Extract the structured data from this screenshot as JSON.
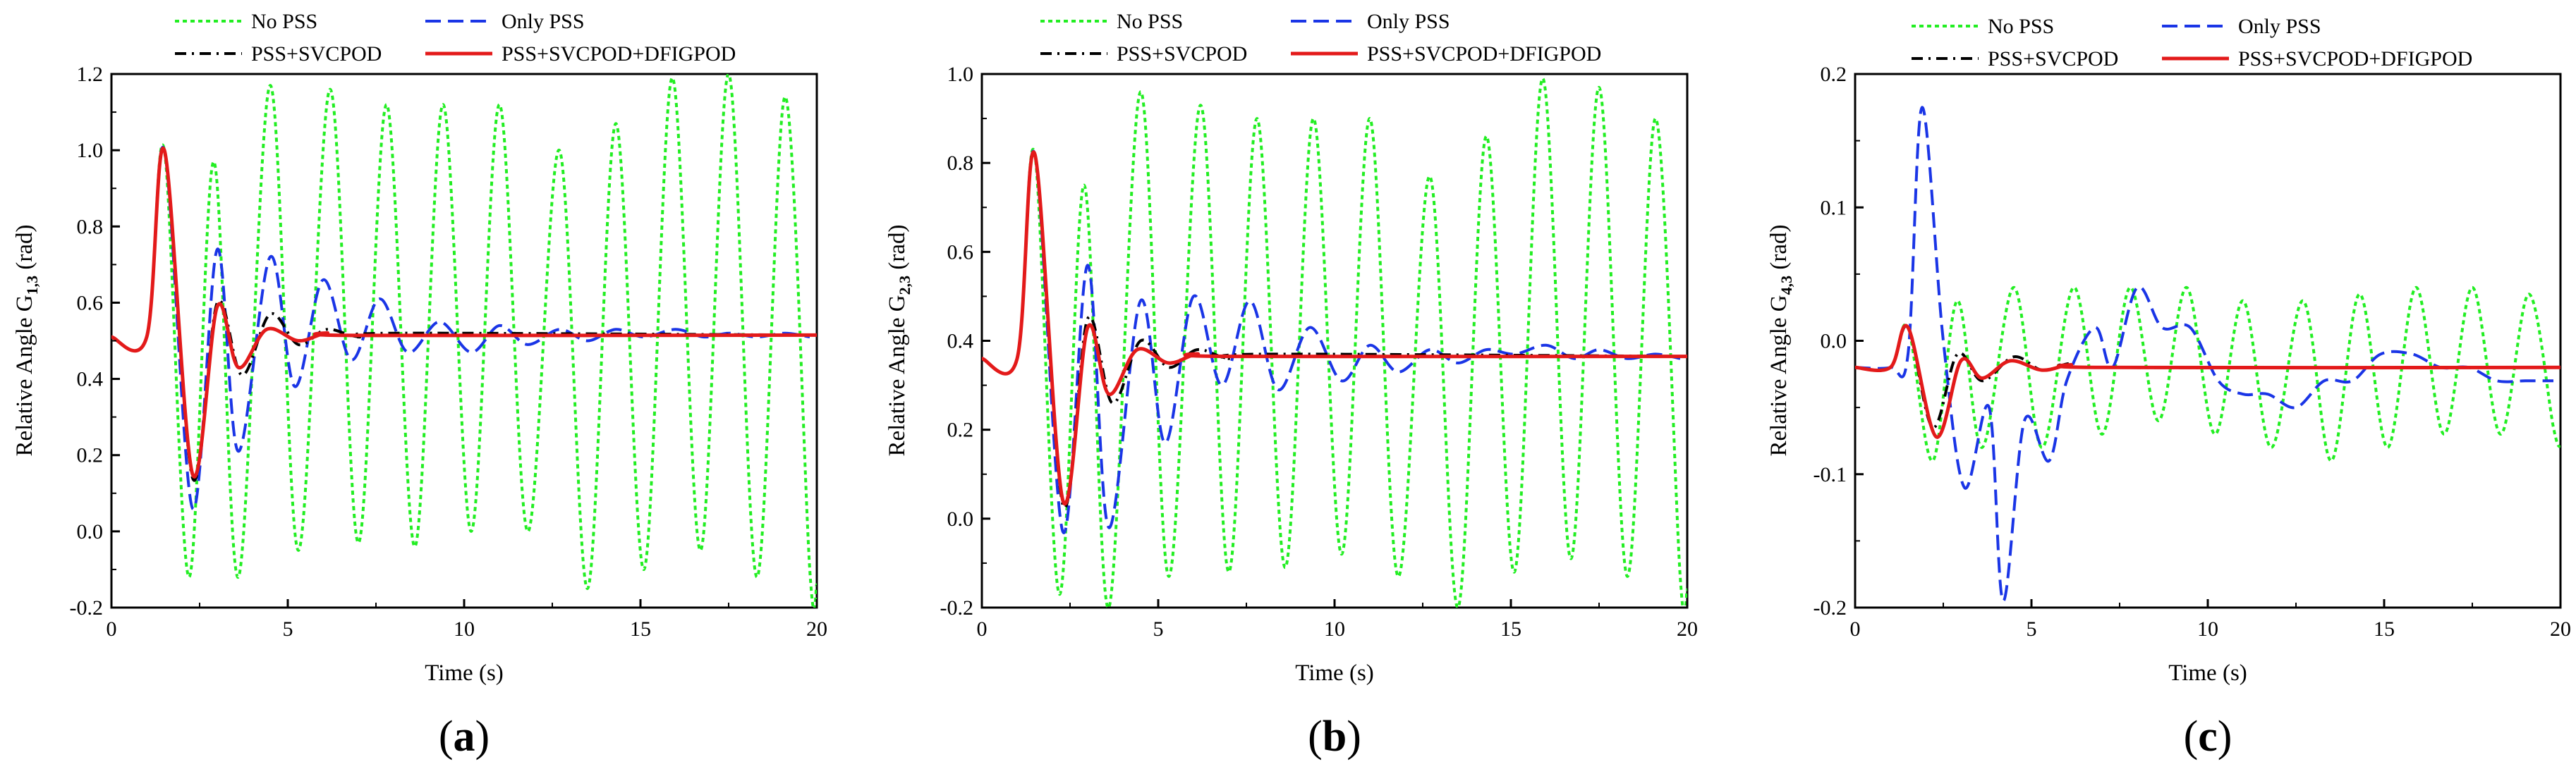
{
  "figure": {
    "panel_labels": [
      {
        "open": "(",
        "letter": "a",
        "close": ")"
      },
      {
        "open": "(",
        "letter": "b",
        "close": ")"
      },
      {
        "open": "(",
        "letter": "c",
        "close": ")"
      }
    ]
  },
  "chart_data": [
    {
      "type": "line",
      "title": "",
      "xlabel": "Time (s)",
      "ylabel_prefix": "Relative Angle G",
      "ylabel_sub": "1,3",
      "ylabel_unit": "(rad)",
      "xlim": [
        0,
        20
      ],
      "ylim": [
        -0.2,
        1.2
      ],
      "xticks": [
        0,
        5,
        10,
        15,
        20
      ],
      "yticks": [
        -0.2,
        0.0,
        0.2,
        0.4,
        0.6,
        0.8,
        1.0,
        1.2
      ],
      "ytick_labels": [
        "-0.2",
        "0.0",
        "0.2",
        "0.4",
        "0.6",
        "0.8",
        "1.0",
        "1.2"
      ],
      "legend": [
        "No PSS",
        "Only PSS",
        "PSS+SVCPOD",
        "PSS+SVCPOD+DFIGPOD"
      ],
      "series": [
        {
          "name": "No PSS",
          "color": "#22ee22",
          "style": "dot",
          "x": [
            0,
            1.0,
            1.5,
            2.2,
            2.9,
            3.6,
            4.5,
            5.3,
            6.2,
            7.0,
            7.8,
            8.6,
            9.4,
            10.2,
            11.0,
            11.8,
            12.7,
            13.5,
            14.3,
            15.1,
            15.9,
            16.7,
            17.5,
            18.3,
            19.1,
            19.8,
            20
          ],
          "y": [
            0.51,
            0.51,
            1.0,
            -0.12,
            0.97,
            -0.12,
            1.17,
            -0.05,
            1.16,
            -0.03,
            1.12,
            -0.04,
            1.12,
            0.0,
            1.12,
            0.0,
            1.0,
            -0.15,
            1.07,
            -0.1,
            1.19,
            -0.05,
            1.2,
            -0.12,
            1.14,
            -0.1,
            -0.14
          ]
        },
        {
          "name": "Only PSS",
          "color": "#1a35e6",
          "style": "dash",
          "x": [
            0,
            1.0,
            1.5,
            2.3,
            3.0,
            3.6,
            4.5,
            5.2,
            6.0,
            6.8,
            7.6,
            8.4,
            9.3,
            10.2,
            11.0,
            11.8,
            12.7,
            13.5,
            14.3,
            15.1,
            16.0,
            16.8,
            17.5,
            18.3,
            19.1,
            19.8
          ],
          "y": [
            0.51,
            0.51,
            1.0,
            0.06,
            0.74,
            0.21,
            0.72,
            0.38,
            0.66,
            0.45,
            0.61,
            0.47,
            0.55,
            0.47,
            0.54,
            0.49,
            0.53,
            0.5,
            0.53,
            0.51,
            0.53,
            0.51,
            0.52,
            0.51,
            0.52,
            0.51
          ]
        },
        {
          "name": "PSS+SVCPOD",
          "color": "#000000",
          "style": "dashdot",
          "x": [
            0,
            1.0,
            1.5,
            2.3,
            3.0,
            3.7,
            4.5,
            5.3,
            6.1,
            7.0,
            8.0,
            20
          ],
          "y": [
            0.51,
            0.51,
            1.0,
            0.14,
            0.6,
            0.41,
            0.57,
            0.49,
            0.53,
            0.51,
            0.52,
            0.515
          ]
        },
        {
          "name": "PSS+SVCPOD+DFIGPOD",
          "color": "#e31a1a",
          "style": "solid",
          "x": [
            0,
            1.0,
            1.5,
            2.3,
            3.0,
            3.6,
            4.4,
            5.3,
            6.1,
            7.0,
            20
          ],
          "y": [
            0.51,
            0.51,
            1.0,
            0.15,
            0.59,
            0.43,
            0.53,
            0.5,
            0.52,
            0.514,
            0.515
          ]
        }
      ]
    },
    {
      "type": "line",
      "title": "",
      "xlabel": "Time (s)",
      "ylabel_prefix": "Relative Angle G",
      "ylabel_sub": "2,3",
      "ylabel_unit": "(rad)",
      "xlim": [
        0,
        20
      ],
      "ylim": [
        -0.2,
        1.0
      ],
      "xticks": [
        0,
        5,
        10,
        15,
        20
      ],
      "yticks": [
        -0.2,
        0.0,
        0.2,
        0.4,
        0.6,
        0.8,
        1.0
      ],
      "ytick_labels": [
        "-0.2",
        "0.0",
        "0.2",
        "0.4",
        "0.6",
        "0.8",
        "1.0"
      ],
      "legend": [
        "No PSS",
        "Only PSS",
        "PSS+SVCPOD",
        "PSS+SVCPOD+DFIGPOD"
      ],
      "series": [
        {
          "name": "No PSS",
          "color": "#22ee22",
          "style": "dot",
          "x": [
            0,
            1.0,
            1.5,
            2.2,
            2.9,
            3.6,
            4.5,
            5.3,
            6.2,
            7.0,
            7.8,
            8.6,
            9.4,
            10.2,
            11.0,
            11.8,
            12.7,
            13.5,
            14.3,
            15.1,
            15.9,
            16.7,
            17.5,
            18.3,
            19.1,
            19.8,
            20
          ],
          "y": [
            0.36,
            0.36,
            0.82,
            -0.17,
            0.75,
            -0.2,
            0.96,
            -0.13,
            0.93,
            -0.12,
            0.9,
            -0.11,
            0.9,
            -0.08,
            0.9,
            -0.13,
            0.77,
            -0.2,
            0.86,
            -0.12,
            0.99,
            -0.09,
            0.97,
            -0.13,
            0.9,
            -0.13,
            -0.16
          ]
        },
        {
          "name": "Only PSS",
          "color": "#1a35e6",
          "style": "dash",
          "x": [
            0,
            1.0,
            1.5,
            2.3,
            3.0,
            3.6,
            4.5,
            5.2,
            6.0,
            6.8,
            7.6,
            8.4,
            9.3,
            10.2,
            11.0,
            11.8,
            12.7,
            13.5,
            14.3,
            15.1,
            16.0,
            16.8,
            17.5,
            18.3,
            19.1,
            19.8
          ],
          "y": [
            0.36,
            0.36,
            0.82,
            -0.03,
            0.57,
            -0.02,
            0.49,
            0.17,
            0.5,
            0.3,
            0.49,
            0.29,
            0.43,
            0.31,
            0.39,
            0.33,
            0.38,
            0.35,
            0.38,
            0.37,
            0.39,
            0.36,
            0.38,
            0.36,
            0.37,
            0.36
          ]
        },
        {
          "name": "PSS+SVCPOD",
          "color": "#000000",
          "style": "dashdot",
          "x": [
            0,
            1.0,
            1.5,
            2.3,
            3.0,
            3.7,
            4.5,
            5.3,
            6.1,
            7.0,
            8.0,
            20
          ],
          "y": [
            0.36,
            0.36,
            0.82,
            0.03,
            0.45,
            0.26,
            0.4,
            0.34,
            0.38,
            0.36,
            0.37,
            0.365
          ]
        },
        {
          "name": "PSS+SVCPOD+DFIGPOD",
          "color": "#e31a1a",
          "style": "solid",
          "x": [
            0,
            1.0,
            1.5,
            2.3,
            3.0,
            3.6,
            4.4,
            5.3,
            6.1,
            7.0,
            20
          ],
          "y": [
            0.36,
            0.36,
            0.82,
            0.04,
            0.43,
            0.28,
            0.38,
            0.35,
            0.37,
            0.365,
            0.365
          ]
        }
      ]
    },
    {
      "type": "line",
      "title": "",
      "xlabel": "Time (s)",
      "ylabel_prefix": "Relative Angle G",
      "ylabel_sub": "4,3",
      "ylabel_unit": "(rad)",
      "xlim": [
        0,
        20
      ],
      "ylim": [
        -0.2,
        0.2
      ],
      "xticks": [
        0,
        5,
        10,
        15,
        20
      ],
      "yticks": [
        -0.2,
        -0.1,
        0.0,
        0.1,
        0.2
      ],
      "ytick_labels": [
        "-0.2",
        "-0.1",
        "0.0",
        "0.1",
        "0.2"
      ],
      "legend": [
        "No PSS",
        "Only PSS",
        "PSS+SVCPOD",
        "PSS+SVCPOD+DFIGPOD"
      ],
      "series": [
        {
          "name": "No PSS",
          "color": "#22ee22",
          "style": "dot",
          "x": [
            0,
            1.0,
            1.5,
            2.2,
            2.9,
            3.6,
            4.5,
            5.3,
            6.2,
            7.0,
            7.8,
            8.6,
            9.4,
            10.2,
            11.0,
            11.8,
            12.7,
            13.5,
            14.3,
            15.1,
            15.9,
            16.7,
            17.5,
            18.3,
            19.1,
            19.8,
            20
          ],
          "y": [
            -0.02,
            -0.02,
            0.01,
            -0.09,
            0.03,
            -0.08,
            0.04,
            -0.08,
            0.04,
            -0.07,
            0.04,
            -0.06,
            0.04,
            -0.07,
            0.03,
            -0.08,
            0.03,
            -0.09,
            0.035,
            -0.08,
            0.04,
            -0.07,
            0.04,
            -0.07,
            0.035,
            -0.065,
            -0.08
          ]
        },
        {
          "name": "Only PSS",
          "color": "#1a35e6",
          "style": "dash",
          "x": [
            0,
            1.0,
            1.5,
            1.9,
            2.5,
            3.1,
            3.8,
            4.2,
            4.8,
            5.5,
            6.0,
            6.8,
            7.3,
            8.0,
            8.7,
            9.5,
            10.3,
            11.0,
            11.7,
            12.5,
            13.3,
            14.1,
            14.9,
            15.8,
            16.6,
            17.4,
            18.2,
            19.0,
            19.8
          ],
          "y": [
            -0.02,
            -0.02,
            -0.01,
            0.175,
            0.0,
            -0.11,
            -0.05,
            -0.195,
            -0.06,
            -0.09,
            -0.03,
            0.01,
            -0.02,
            0.04,
            0.01,
            0.01,
            -0.03,
            -0.04,
            -0.04,
            -0.05,
            -0.03,
            -0.03,
            -0.01,
            -0.01,
            -0.02,
            -0.02,
            -0.03,
            -0.03,
            -0.03
          ]
        },
        {
          "name": "PSS+SVCPOD",
          "color": "#000000",
          "style": "dashdot",
          "x": [
            0,
            1.0,
            1.5,
            2.2,
            2.9,
            3.6,
            4.5,
            5.3,
            6.1,
            7.0,
            20
          ],
          "y": [
            -0.02,
            -0.02,
            0.01,
            -0.065,
            -0.01,
            -0.03,
            -0.012,
            -0.022,
            -0.017,
            -0.02,
            -0.02
          ]
        },
        {
          "name": "PSS+SVCPOD+DFIGPOD",
          "color": "#e31a1a",
          "style": "solid",
          "x": [
            0,
            1.0,
            1.5,
            2.3,
            3.0,
            3.6,
            4.4,
            5.3,
            6.1,
            7.0,
            20
          ],
          "y": [
            -0.02,
            -0.02,
            0.01,
            -0.072,
            -0.015,
            -0.028,
            -0.015,
            -0.022,
            -0.018,
            -0.02,
            -0.02
          ]
        }
      ]
    }
  ]
}
